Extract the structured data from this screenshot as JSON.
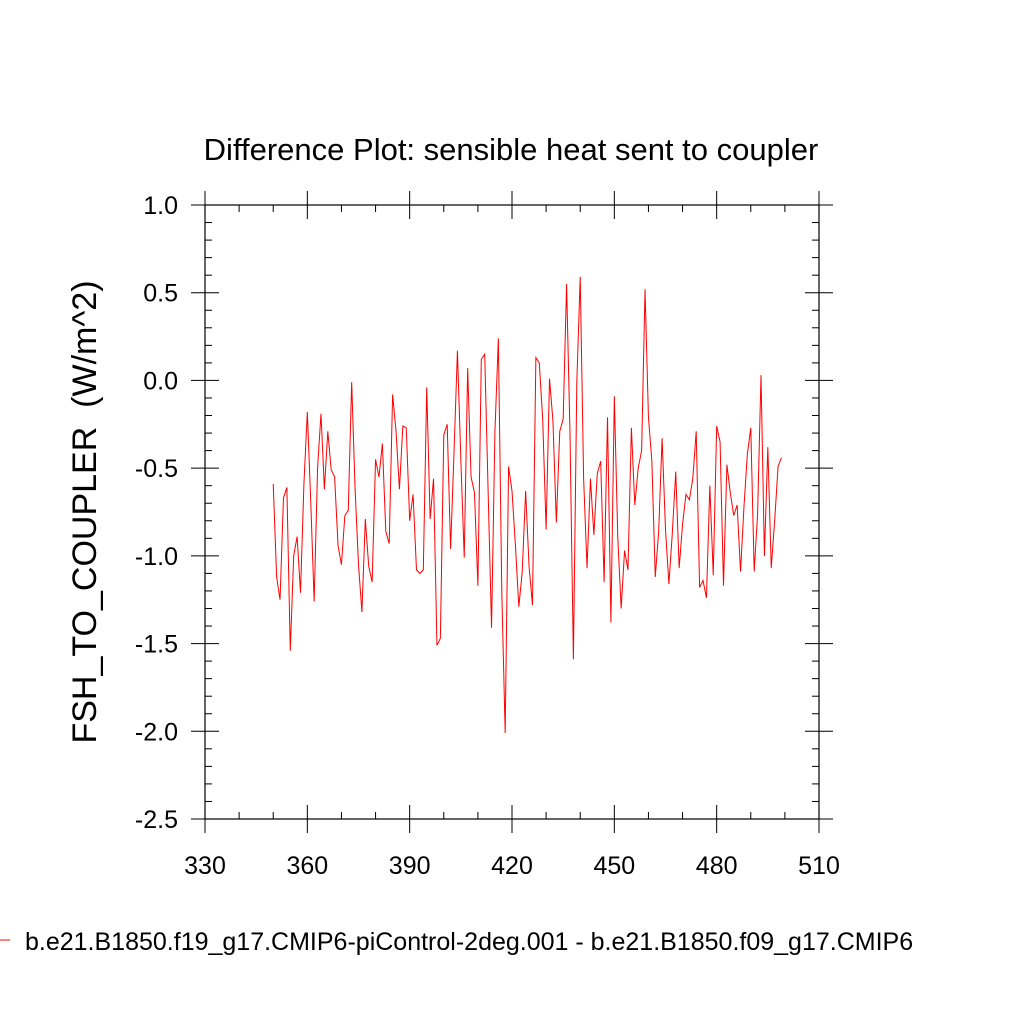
{
  "chart_data": {
    "type": "line",
    "title": "Difference Plot: sensible heat sent to coupler",
    "xlabel": "",
    "ylabel": "FSH_TO_COUPLER  (W/m^2)",
    "xlim": [
      330,
      510
    ],
    "ylim": [
      -2.5,
      1.0
    ],
    "xticks": [
      330,
      360,
      390,
      420,
      450,
      480,
      510
    ],
    "xtick_labels": [
      "330",
      "360",
      "390",
      "420",
      "450",
      "480",
      "510"
    ],
    "yticks": [
      1.0,
      0.5,
      0.0,
      -0.5,
      -1.0,
      -1.5,
      -2.0,
      -2.5
    ],
    "ytick_labels": [
      "1.0",
      "0.5",
      "0.0",
      "-0.5",
      "-1.0",
      "-1.5",
      "-2.0",
      "-2.5"
    ],
    "grid": false,
    "legend_position": "bottom",
    "series": [
      {
        "name": "b.e21.B1850.f19_g17.CMIP6-piControl-2deg.001 - b.e21.B1850.f09_g17.CMIP6",
        "color": "#ff0000",
        "x_start": 350,
        "x_step": 1,
        "values": [
          -0.59,
          -1.12,
          -1.25,
          -0.67,
          -0.61,
          -1.54,
          -1.0,
          -0.89,
          -1.21,
          -0.59,
          -0.18,
          -0.69,
          -1.26,
          -0.5,
          -0.19,
          -0.62,
          -0.29,
          -0.51,
          -0.55,
          -0.94,
          -1.05,
          -0.77,
          -0.74,
          -0.01,
          -0.62,
          -1.05,
          -1.32,
          -0.79,
          -1.06,
          -1.15,
          -0.45,
          -0.55,
          -0.36,
          -0.86,
          -0.93,
          -0.08,
          -0.29,
          -0.62,
          -0.26,
          -0.27,
          -0.8,
          -0.65,
          -1.08,
          -1.1,
          -1.08,
          -0.04,
          -0.79,
          -0.56,
          -1.51,
          -1.47,
          -0.31,
          -0.25,
          -0.96,
          -0.41,
          0.17,
          -0.45,
          -1.01,
          0.07,
          -0.55,
          -0.64,
          -1.17,
          0.12,
          0.15,
          -0.63,
          -1.41,
          -0.29,
          0.24,
          -1.2,
          -2.01,
          -0.49,
          -0.63,
          -0.94,
          -1.29,
          -1.09,
          -0.63,
          -1.06,
          -1.28,
          0.13,
          0.1,
          -0.22,
          -0.85,
          0.01,
          -0.23,
          -0.81,
          -0.29,
          -0.22,
          0.55,
          -0.3,
          -1.59,
          -0.01,
          0.59,
          -0.56,
          -1.07,
          -0.56,
          -0.88,
          -0.53,
          -0.46,
          -1.15,
          -0.21,
          -1.38,
          -0.09,
          -0.89,
          -1.3,
          -0.97,
          -1.08,
          -0.27,
          -0.71,
          -0.5,
          -0.4,
          0.52,
          -0.21,
          -0.46,
          -1.12,
          -0.86,
          -0.33,
          -0.85,
          -1.16,
          -0.87,
          -0.52,
          -1.07,
          -0.82,
          -0.65,
          -0.68,
          -0.56,
          -0.29,
          -1.18,
          -1.14,
          -1.24,
          -0.6,
          -1.11,
          -0.26,
          -0.35,
          -1.17,
          -0.48,
          -0.64,
          -0.77,
          -0.71,
          -1.09,
          -0.72,
          -0.42,
          -0.27,
          -1.09,
          -0.76,
          0.03,
          -1.0,
          -0.38,
          -1.07,
          -0.8,
          -0.49,
          -0.44
        ]
      }
    ]
  },
  "legend": {
    "text": "b.e21.B1850.f19_g17.CMIP6-piControl-2deg.001 - b.e21.B1850.f09_g17.CMIP6"
  }
}
